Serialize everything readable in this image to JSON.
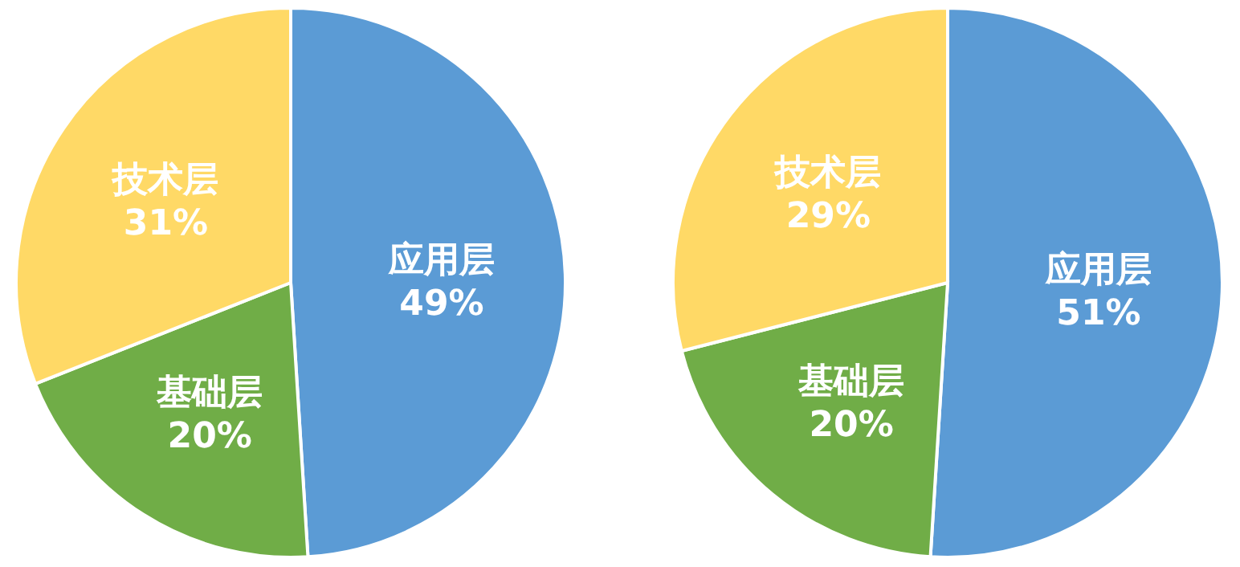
{
  "chart_data": [
    {
      "type": "pie",
      "categories": [
        "应用层",
        "基础层",
        "技术层"
      ],
      "values": [
        49,
        20,
        31
      ],
      "value_labels": [
        "49%",
        "20%",
        "31%"
      ],
      "colors": [
        "#5b9bd5",
        "#70ad47",
        "#ffd966"
      ]
    },
    {
      "type": "pie",
      "categories": [
        "应用层",
        "基础层",
        "技术层"
      ],
      "values": [
        51,
        20,
        29
      ],
      "value_labels": [
        "51%",
        "20%",
        "29%"
      ],
      "colors": [
        "#5b9bd5",
        "#70ad47",
        "#ffd966"
      ]
    }
  ]
}
